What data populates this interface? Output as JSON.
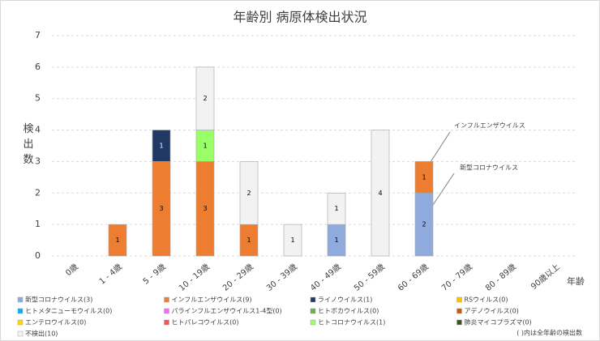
{
  "chart_data": {
    "type": "stacked_bar",
    "title": "年齢別 病原体検出状況",
    "y_label": "検出数",
    "x_label": "年齢",
    "footnote": "( )内は全年齢の検出数",
    "categories": [
      "0歳",
      "1 - 4歳",
      "5 - 9歳",
      "10 - 19歳",
      "20 - 29歳",
      "30 - 39歳",
      "40 - 49歳",
      "50 - 59歳",
      "60 - 69歳",
      "70 - 79歳",
      "80 - 89歳",
      "90歳以上"
    ],
    "series": [
      {
        "name": "新型コロナウイルス(3)",
        "color": "#8faadc",
        "values": [
          0,
          0,
          0,
          0,
          0,
          0,
          1,
          0,
          2,
          0,
          0,
          0
        ]
      },
      {
        "name": "インフルエンザウイルス(9)",
        "color": "#ed7d31",
        "values": [
          0,
          1,
          3,
          3,
          1,
          0,
          0,
          0,
          1,
          0,
          0,
          0
        ]
      },
      {
        "name": "ライノウイルス(1)",
        "color": "#203864",
        "values": [
          0,
          0,
          1,
          0,
          0,
          0,
          0,
          0,
          0,
          0,
          0,
          0
        ]
      },
      {
        "name": "RSウイルス(0)",
        "color": "#ffc000",
        "values": [
          0,
          0,
          0,
          0,
          0,
          0,
          0,
          0,
          0,
          0,
          0,
          0
        ]
      },
      {
        "name": "ヒトメタニューモウイルス(0)",
        "color": "#00b0f0",
        "values": [
          0,
          0,
          0,
          0,
          0,
          0,
          0,
          0,
          0,
          0,
          0,
          0
        ]
      },
      {
        "name": "パラインフルエンザウイルス1-4型(0)",
        "color": "#ff66ff",
        "values": [
          0,
          0,
          0,
          0,
          0,
          0,
          0,
          0,
          0,
          0,
          0,
          0
        ]
      },
      {
        "name": "ヒトボカウイルス(0)",
        "color": "#70ad47",
        "values": [
          0,
          0,
          0,
          0,
          0,
          0,
          0,
          0,
          0,
          0,
          0,
          0
        ]
      },
      {
        "name": "アデノウイルス(0)",
        "color": "#c55a11",
        "values": [
          0,
          0,
          0,
          0,
          0,
          0,
          0,
          0,
          0,
          0,
          0,
          0
        ]
      },
      {
        "name": "エンテロウイルス(0)",
        "color": "#ffd700",
        "values": [
          0,
          0,
          0,
          0,
          0,
          0,
          0,
          0,
          0,
          0,
          0,
          0
        ]
      },
      {
        "name": "ヒトパレコウイルス(0)",
        "color": "#ff5050",
        "values": [
          0,
          0,
          0,
          0,
          0,
          0,
          0,
          0,
          0,
          0,
          0,
          0
        ]
      },
      {
        "name": "ヒトコロナウイルス(1)",
        "color": "#99ff66",
        "values": [
          0,
          0,
          0,
          1,
          0,
          0,
          0,
          0,
          0,
          0,
          0,
          0
        ]
      },
      {
        "name": "肺炎マイコプラズマ(0)",
        "color": "#375623",
        "values": [
          0,
          0,
          0,
          0,
          0,
          0,
          0,
          0,
          0,
          0,
          0,
          0
        ]
      },
      {
        "name": "不検出(10)",
        "color": "#f2f2f2",
        "values": [
          0,
          0,
          0,
          2,
          2,
          1,
          1,
          4,
          0,
          0,
          0,
          0
        ]
      }
    ],
    "annotations": [
      "インフルエンザウイルス",
      "新型コロナウイルス"
    ],
    "ylim": [
      0,
      7
    ],
    "yticks": [
      0,
      1,
      2,
      3,
      4,
      5,
      6,
      7
    ],
    "grid": true,
    "legend": "bottom"
  }
}
